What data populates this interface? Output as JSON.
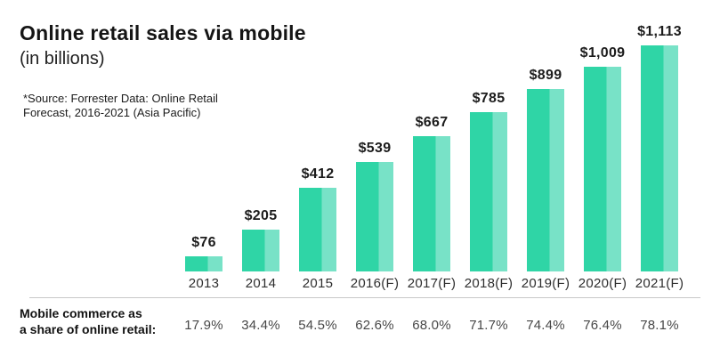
{
  "header": {
    "title": "Online retail sales via mobile",
    "subtitle": "(in billions)"
  },
  "source": {
    "line1": "*Source: Forrester Data: Online Retail",
    "line2": "Forecast, 2016-2021 (Asia Pacific)"
  },
  "chart_data": {
    "type": "bar",
    "title": "Online retail sales via mobile (in billions)",
    "categories": [
      "2013",
      "2014",
      "2015",
      "2016(F)",
      "2017(F)",
      "2018(F)",
      "2019(F)",
      "2020(F)",
      "2021(F)"
    ],
    "values": [
      76,
      205,
      412,
      539,
      667,
      785,
      899,
      1009,
      1113
    ],
    "value_labels": [
      "$76",
      "$205",
      "$412",
      "$539",
      "$667",
      "$785",
      "$899",
      "$1,009",
      "$1,113"
    ],
    "share_of_online_retail_pct": [
      17.9,
      34.4,
      54.5,
      62.6,
      68.0,
      71.7,
      74.4,
      76.4,
      78.1
    ],
    "share_labels": [
      "17.9%",
      "34.4%",
      "54.5%",
      "62.6%",
      "68.0%",
      "71.7%",
      "74.4%",
      "76.4%",
      "78.1%"
    ],
    "ylim": [
      0,
      1113
    ],
    "grid": false,
    "legend": false,
    "bar_color": "#2fd5a6",
    "bar_color_light": "#78e2c7"
  },
  "footer": {
    "share_label_line1": "Mobile commerce as",
    "share_label_line2": "a share of online retail:"
  }
}
